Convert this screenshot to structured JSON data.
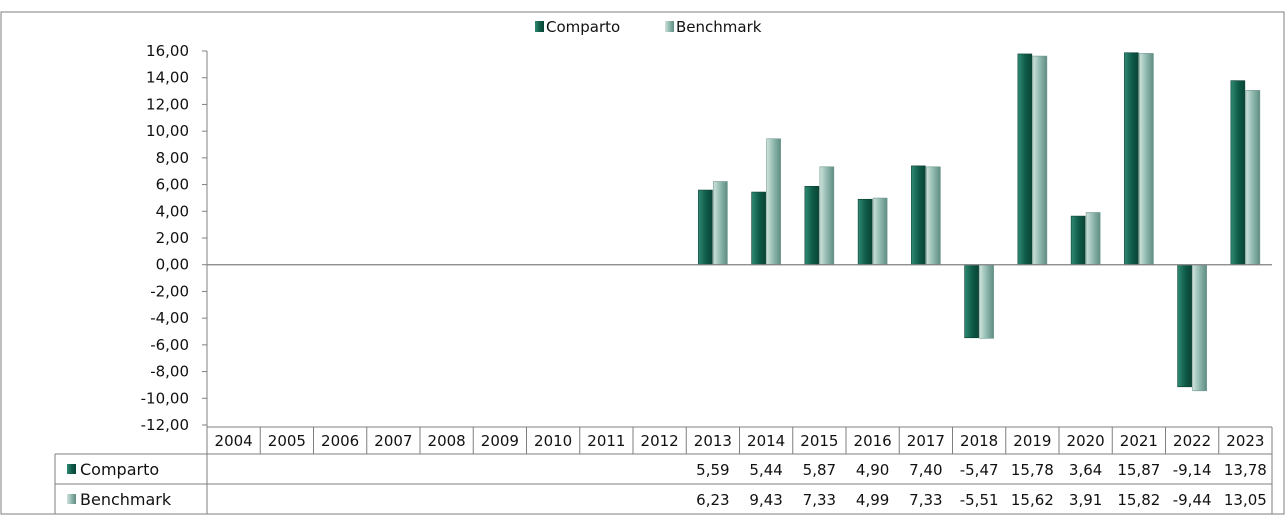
{
  "colors": {
    "comparto": "#0e5a48",
    "comparto_light": "#2f8a72",
    "benchmark": "#8fb8ae",
    "benchmark_light": "#cfe3dc"
  },
  "chart_data": {
    "type": "bar",
    "categories": [
      "2004",
      "2005",
      "2006",
      "2007",
      "2008",
      "2009",
      "2010",
      "2011",
      "2012",
      "2013",
      "2014",
      "2015",
      "2016",
      "2017",
      "2018",
      "2019",
      "2020",
      "2021",
      "2022",
      "2023"
    ],
    "series": [
      {
        "name": "Comparto",
        "values": [
          null,
          null,
          null,
          null,
          null,
          null,
          null,
          null,
          null,
          5.59,
          5.44,
          5.87,
          4.9,
          7.4,
          -5.47,
          15.78,
          3.64,
          15.87,
          -9.14,
          13.78
        ],
        "labels": [
          "",
          "",
          "",
          "",
          "",
          "",
          "",
          "",
          "",
          "5,59",
          "5,44",
          "5,87",
          "4,90",
          "7,40",
          "-5,47",
          "15,78",
          "3,64",
          "15,87",
          "-9,14",
          "13,78"
        ]
      },
      {
        "name": "Benchmark",
        "values": [
          null,
          null,
          null,
          null,
          null,
          null,
          null,
          null,
          null,
          6.23,
          9.43,
          7.33,
          4.99,
          7.33,
          -5.51,
          15.62,
          3.91,
          15.82,
          -9.44,
          13.05
        ],
        "labels": [
          "",
          "",
          "",
          "",
          "",
          "",
          "",
          "",
          "",
          "6,23",
          "9,43",
          "7,33",
          "4,99",
          "7,33",
          "-5,51",
          "15,62",
          "3,91",
          "15,82",
          "-9,44",
          "13,05"
        ]
      }
    ],
    "ylim": [
      -12,
      16
    ],
    "yticks": [
      "16,00",
      "14,00",
      "12,00",
      "10,00",
      "8,00",
      "6,00",
      "4,00",
      "2,00",
      "0,00",
      "-2,00",
      "-4,00",
      "-6,00",
      "-8,00",
      "-10,00",
      "-12,00"
    ],
    "ytick_values": [
      16,
      14,
      12,
      10,
      8,
      6,
      4,
      2,
      0,
      -2,
      -4,
      -6,
      -8,
      -10,
      -12
    ],
    "legend_position": "top-center",
    "grid": false,
    "data_table": true
  }
}
